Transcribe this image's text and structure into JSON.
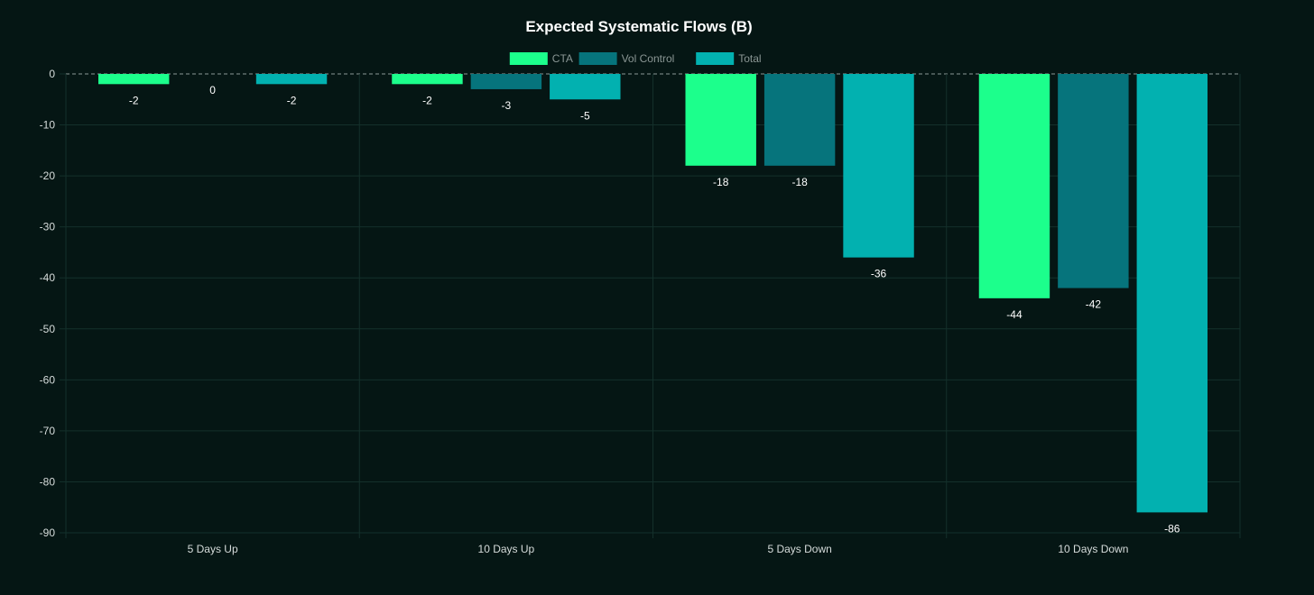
{
  "chart_data": {
    "type": "bar",
    "title": "Expected Systematic Flows (B)",
    "categories": [
      "5 Days Up",
      "10 Days Up",
      "5 Days Down",
      "10 Days Down"
    ],
    "series": [
      {
        "name": "CTA",
        "color": "#1cff8c",
        "values": [
          -2,
          -2,
          -18,
          -44
        ]
      },
      {
        "name": "Vol Control",
        "color": "#06747c",
        "values": [
          0,
          -3,
          -18,
          -42
        ]
      },
      {
        "name": "Total",
        "color": "#02b1b0",
        "values": [
          -2,
          -5,
          -36,
          -86
        ]
      }
    ],
    "ylim": [
      -90,
      0
    ],
    "yticks": [
      0,
      -10,
      -20,
      -30,
      -40,
      -50,
      -60,
      -70,
      -80,
      -90
    ],
    "xlabel": "",
    "ylabel": "",
    "legend": "top-center",
    "grid": true,
    "background": "#051614"
  }
}
